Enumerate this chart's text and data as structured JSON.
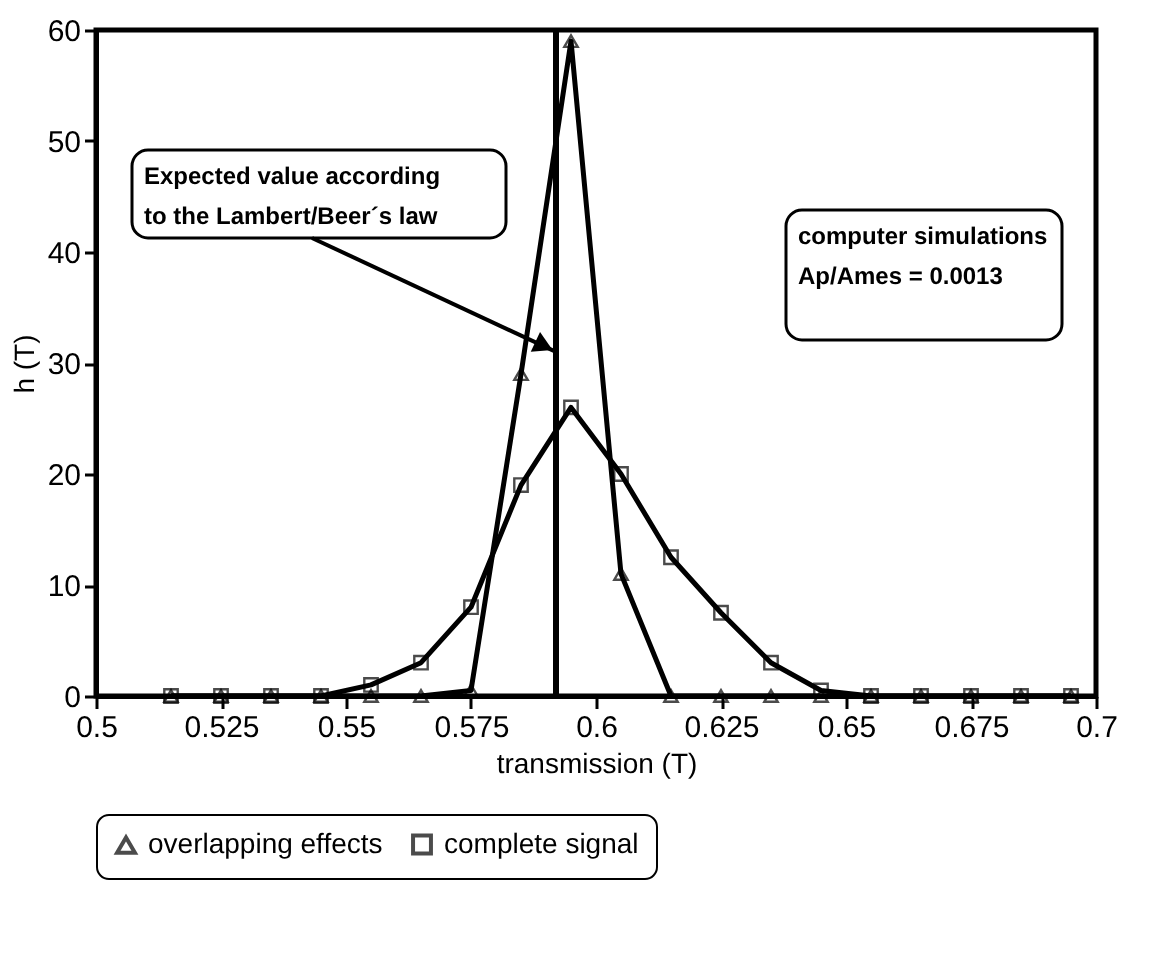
{
  "chart_data": {
    "type": "line",
    "xlabel": "transmission (T)",
    "ylabel": "h (T)",
    "x": [
      0.515,
      0.525,
      0.535,
      0.545,
      0.555,
      0.565,
      0.575,
      0.585,
      0.595,
      0.605,
      0.615,
      0.625,
      0.635,
      0.645,
      0.655,
      0.665,
      0.675,
      0.685,
      0.695
    ],
    "series": [
      {
        "name": "overlapping effects",
        "color": "#000000",
        "marker": "triangle",
        "values": [
          0,
          0,
          0,
          0,
          0,
          0,
          0.5,
          29,
          59,
          11,
          0,
          0,
          0,
          0,
          0,
          0,
          0,
          0,
          0
        ]
      },
      {
        "name": "complete signal",
        "color": "#000000",
        "marker": "square",
        "values": [
          0,
          0,
          0,
          0,
          1,
          3,
          8,
          19,
          26,
          20,
          12.5,
          7.5,
          3,
          0.5,
          0,
          0,
          0,
          0,
          0
        ]
      }
    ],
    "xlim": [
      0.5,
      0.7
    ],
    "ylim": [
      0,
      60
    ],
    "xticks": [
      0.5,
      0.525,
      0.55,
      0.575,
      0.6,
      0.625,
      0.65,
      0.675,
      0.7
    ],
    "yticks": [
      0,
      10,
      20,
      30,
      40,
      50,
      60
    ],
    "ref_lines": [
      {
        "axis": "x",
        "value": 0.592,
        "label": null,
        "color": "#000000"
      }
    ],
    "annotations": [
      {
        "text": "Expected value according\nto the Lambert/Beer´s law",
        "x": 0.592,
        "y": 31
      },
      "computer simulations\nAp/Ames = 0.0013"
    ],
    "grid": false,
    "legend": "bottom",
    "line_style": "solid"
  }
}
